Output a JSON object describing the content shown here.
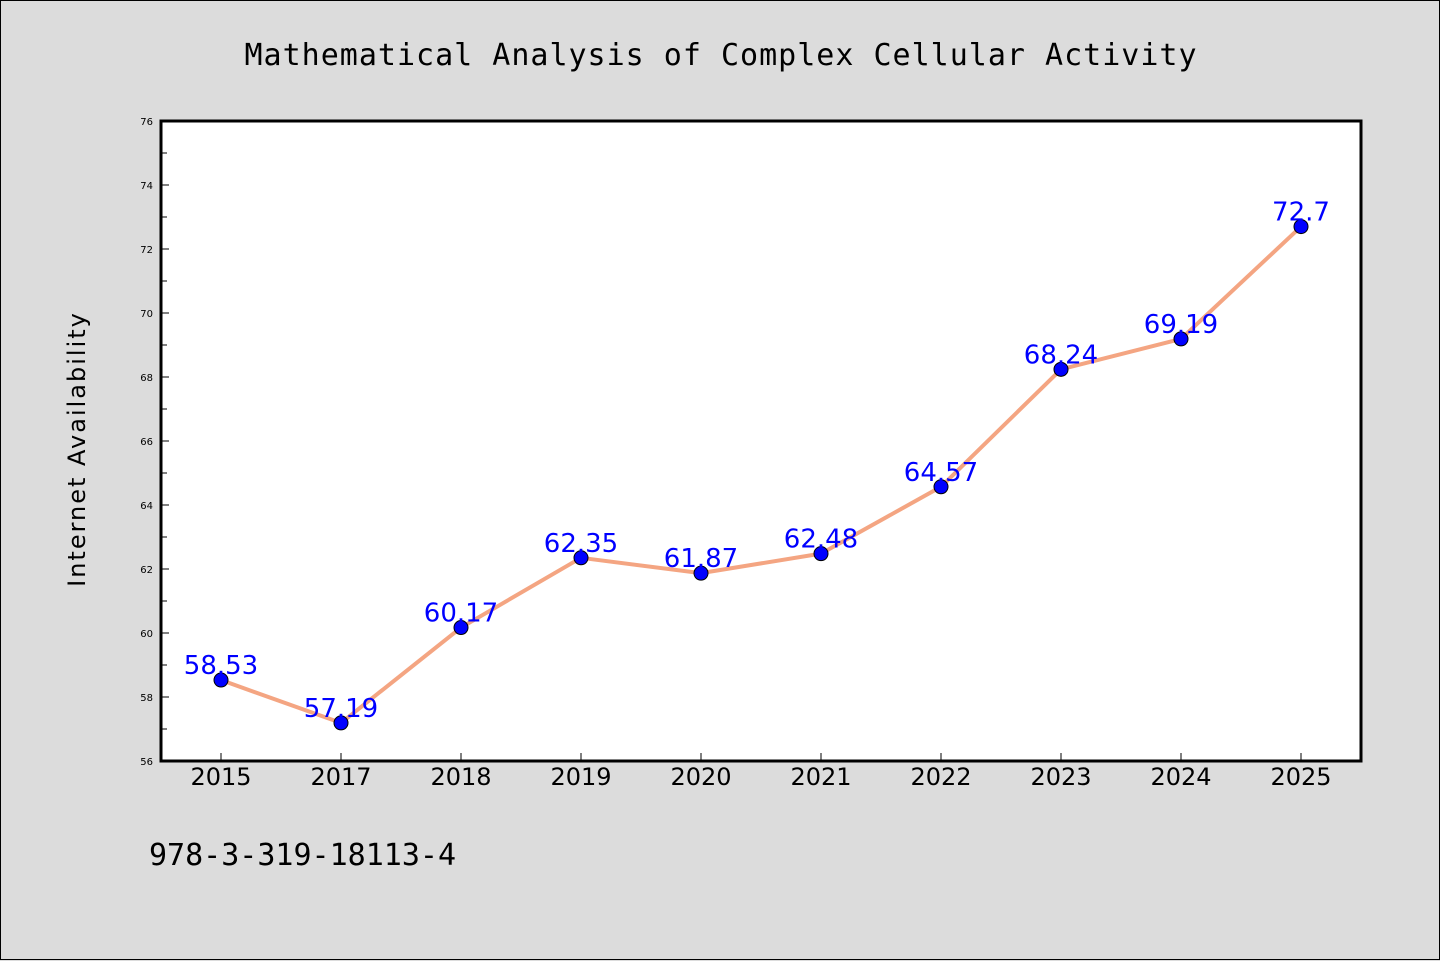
{
  "chart_data": {
    "type": "line",
    "title": "Mathematical Analysis of Complex Cellular Activity",
    "xlabel": "",
    "ylabel": "Internet Availability",
    "categories": [
      "2015",
      "2017",
      "2018",
      "2019",
      "2020",
      "2021",
      "2022",
      "2023",
      "2024",
      "2025"
    ],
    "series": [
      {
        "values": [
          58.53,
          57.19,
          60.17,
          62.35,
          61.87,
          62.48,
          64.57,
          68.24,
          69.19,
          72.7
        ],
        "data_labels": [
          "58.53",
          "57.19",
          "60.17",
          "62.35",
          "61.87",
          "62.48",
          "64.57",
          "68.24",
          "69.19",
          "72.7"
        ],
        "line_color": "#f4a582",
        "marker_color": "#0000ff"
      }
    ],
    "ylim": [
      56,
      76
    ],
    "yticks": [
      "56",
      "58",
      "60",
      "62",
      "64",
      "66",
      "68",
      "70",
      "72",
      "74",
      "76"
    ],
    "grid": false,
    "legend": "none"
  },
  "footer_text": "978-3-319-18113-4",
  "colors": {
    "background": "#dcdcdc",
    "plot_background": "#ffffff",
    "axis": "#000000",
    "label_text": "#0000ff"
  }
}
